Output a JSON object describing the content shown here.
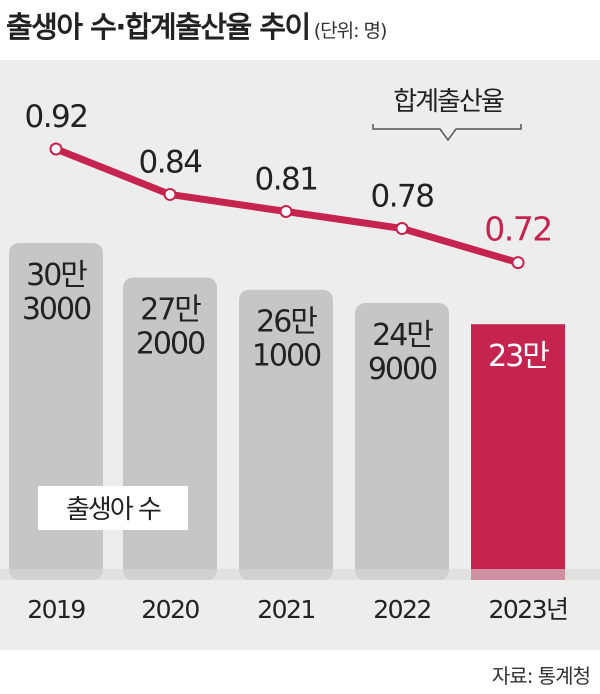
{
  "title": "출생아 수·합계출산율 추이",
  "unit": "(단위: 명)",
  "source": "자료: 통계청",
  "colors": {
    "bar": "#c7c6c7",
    "highlight": "#c5244e",
    "line": "#c5244e",
    "text": "#222222",
    "panel": "#eeedee"
  },
  "chart_data": {
    "type": "bar+line",
    "title": "출생아 수·합계출산율 추이",
    "categories": [
      "2019",
      "2020",
      "2021",
      "2022",
      "2023년"
    ],
    "series": [
      {
        "name": "출생아 수",
        "type": "bar",
        "values": [
          303000,
          272000,
          261000,
          249000,
          230000
        ],
        "labels": [
          [
            "30만",
            "3000"
          ],
          [
            "27만",
            "2000"
          ],
          [
            "26만",
            "1000"
          ],
          [
            "24만",
            "9000"
          ],
          [
            "23만"
          ]
        ]
      },
      {
        "name": "합계출산율",
        "type": "line",
        "values": [
          0.92,
          0.84,
          0.81,
          0.78,
          0.72
        ],
        "labels": [
          "0.92",
          "0.84",
          "0.81",
          "0.78",
          "0.72"
        ]
      }
    ],
    "highlight_index": 4,
    "legend": [
      "출생아 수",
      "합계출산율"
    ]
  }
}
